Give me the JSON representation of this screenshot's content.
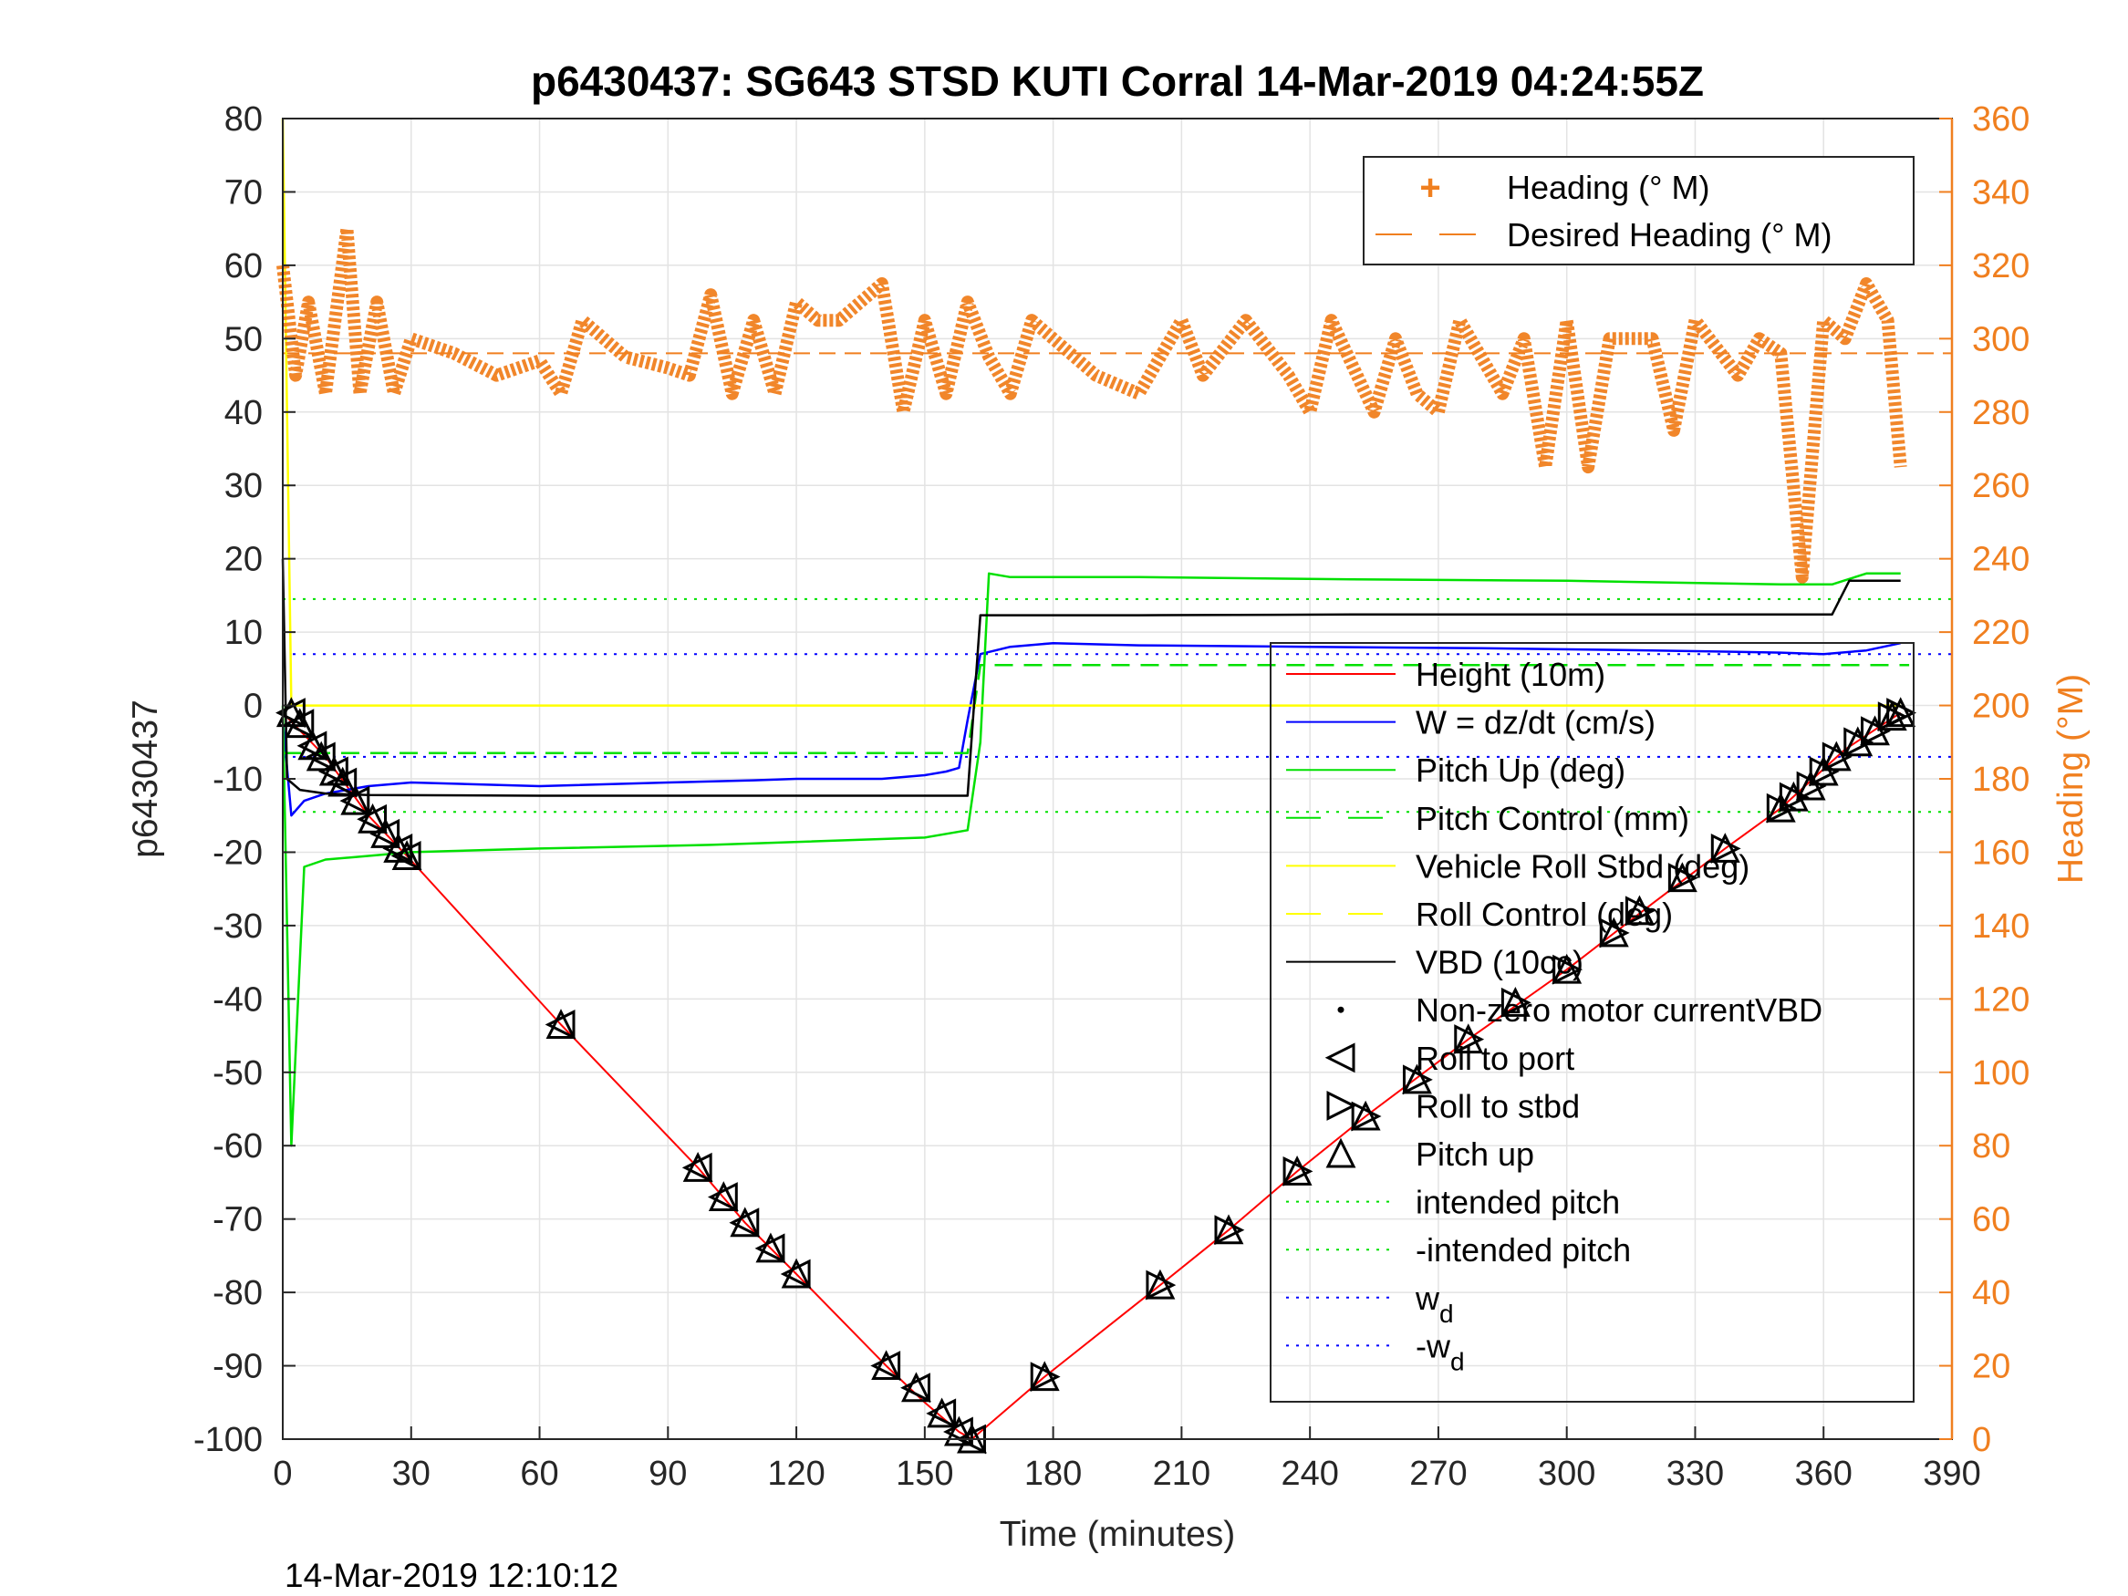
{
  "chart_data": {
    "type": "line",
    "title": "p6430437: SG643 STSD KUTI Corral 14-Mar-2019 04:24:55Z",
    "xlabel": "Time (minutes)",
    "ylabel": "p6430437",
    "y2label": "Heading (°M)",
    "footer": "14-Mar-2019 12:10:12",
    "xlim": [
      0,
      390
    ],
    "ylim": [
      -100,
      80
    ],
    "y2lim": [
      0,
      360
    ],
    "grid": true,
    "xticks": [
      0,
      30,
      60,
      90,
      120,
      150,
      180,
      210,
      240,
      270,
      300,
      330,
      360,
      390
    ],
    "yticks": [
      80,
      70,
      60,
      50,
      40,
      30,
      20,
      10,
      0,
      -10,
      -20,
      -30,
      -40,
      -50,
      -60,
      -70,
      -80,
      -90,
      -100
    ],
    "y2ticks": [
      360,
      340,
      320,
      300,
      280,
      260,
      240,
      220,
      200,
      180,
      160,
      140,
      120,
      100,
      80,
      60,
      40,
      20,
      0
    ],
    "legend_top": {
      "placement": "top-right",
      "entries": [
        {
          "label": "Heading (° M)",
          "color": "#f07f1f",
          "marker": "plus"
        },
        {
          "label": "Desired Heading (° M)",
          "color": "#f07f1f",
          "style": "dashed"
        }
      ]
    },
    "legend_main": {
      "placement": "right",
      "entries": [
        {
          "label": "Height (10m)",
          "color": "#ff0000",
          "style": "solid"
        },
        {
          "label": "W = dz/dt (cm/s)",
          "color": "#0000ff",
          "style": "solid"
        },
        {
          "label": "Pitch Up (deg)",
          "color": "#00e000",
          "style": "solid"
        },
        {
          "label": "Pitch Control (mm)",
          "color": "#00e000",
          "style": "dashed"
        },
        {
          "label": "Vehicle Roll Stbd (deg)",
          "color": "#ffff00",
          "style": "solid"
        },
        {
          "label": "Roll Control (deg)",
          "color": "#ffff00",
          "style": "dashed"
        },
        {
          "label": "VBD (10cc)",
          "color": "#000000",
          "style": "solid"
        },
        {
          "label": "Non-zero motor currentVBD",
          "color": "#000000",
          "marker": "dot"
        },
        {
          "label": "Roll to port",
          "color": "#000000",
          "marker": "triangle-left"
        },
        {
          "label": "Roll to stbd",
          "color": "#000000",
          "marker": "triangle-right"
        },
        {
          "label": "Pitch up",
          "color": "#000000",
          "marker": "triangle-up"
        },
        {
          "label": "intended pitch",
          "color": "#00e000",
          "style": "dotted"
        },
        {
          "label": "-intended pitch",
          "color": "#00e000",
          "style": "dotted"
        },
        {
          "label": "w",
          "sub": "d",
          "color": "#0000ff",
          "style": "dotted"
        },
        {
          "label": "-w",
          "sub": "d",
          "color": "#0000ff",
          "style": "dotted"
        }
      ]
    },
    "reference_lines": [
      {
        "name": "intended pitch",
        "y": 14.5,
        "color": "#00e000"
      },
      {
        "name": "-intended pitch",
        "y": -14.5,
        "color": "#00e000"
      },
      {
        "name": "w_d",
        "y": 7,
        "color": "#0000ff"
      },
      {
        "name": "-w_d",
        "y": -7,
        "color": "#0000ff"
      },
      {
        "name": "Desired Heading",
        "y2": 296,
        "color": "#f07f1f"
      }
    ],
    "series": [
      {
        "name": "Height (10m)",
        "color": "#ff0000",
        "x": [
          0,
          10,
          20,
          29,
          65,
          97,
          108,
          120,
          141,
          150,
          158,
          161,
          178,
          205,
          221,
          237,
          253,
          277,
          300,
          320,
          337,
          350,
          365,
          378
        ],
        "y": [
          -1,
          -7,
          -15,
          -20.5,
          -43.5,
          -63,
          -70.5,
          -77.5,
          -90,
          -95,
          -99,
          -100,
          -91.5,
          -79,
          -71.5,
          -63.5,
          -56,
          -45.5,
          -36,
          -27,
          -19.5,
          -14,
          -6,
          -1
        ]
      },
      {
        "name": "W = dz/dt (cm/s)",
        "color": "#0000ff",
        "x": [
          0,
          2,
          5,
          10,
          20,
          30,
          60,
          90,
          110,
          120,
          140,
          150,
          155,
          158,
          160,
          163,
          170,
          180,
          200,
          240,
          280,
          320,
          350,
          360,
          370,
          378
        ],
        "y": [
          -2,
          -15,
          -13,
          -12,
          -11,
          -10.5,
          -11,
          -10.5,
          -10.2,
          -10,
          -10,
          -9.5,
          -9,
          -8.5,
          -2,
          7,
          8,
          8.5,
          8.2,
          8,
          7.8,
          7.5,
          7.2,
          7,
          7.5,
          8.5
        ]
      },
      {
        "name": "Pitch Up (deg)",
        "color": "#00e000",
        "x": [
          0,
          2,
          5,
          10,
          20,
          30,
          60,
          100,
          150,
          160,
          163,
          165,
          170,
          200,
          250,
          300,
          350,
          362,
          370,
          378
        ],
        "y": [
          0,
          -60,
          -22,
          -21,
          -20.5,
          -20,
          -19.5,
          -19,
          -18,
          -17,
          -5,
          18,
          17.5,
          17.5,
          17.2,
          17,
          16.5,
          16.5,
          18,
          18
        ]
      },
      {
        "name": "Pitch Control (mm)",
        "color": "#00e000",
        "style": "dashed",
        "x": [
          0,
          160,
          163,
          380
        ],
        "y": [
          -6.5,
          -6.5,
          5.5,
          5.5
        ]
      },
      {
        "name": "Vehicle Roll Stbd (deg)",
        "color": "#ffff00",
        "x": [
          0,
          2,
          30,
          60,
          100,
          160,
          200,
          250,
          300,
          345,
          378
        ],
        "y": [
          80,
          0,
          0,
          0,
          0,
          0,
          0,
          0,
          0,
          0,
          0
        ]
      },
      {
        "name": "VBD (10cc)",
        "color": "#000000",
        "x": [
          0,
          1,
          4,
          10,
          20,
          60,
          100,
          160,
          163,
          200,
          250,
          300,
          362,
          366,
          378
        ],
        "y": [
          20,
          -10,
          -11.5,
          -12,
          -12.2,
          -12.3,
          -12.3,
          -12.3,
          12.3,
          12.3,
          12.4,
          12.4,
          12.4,
          17,
          17
        ]
      },
      {
        "name": "Heading (° M)",
        "color": "#f07f1f",
        "axis": "y2",
        "x": [
          0,
          3,
          6,
          10,
          15,
          18,
          22,
          26,
          30,
          40,
          50,
          60,
          65,
          70,
          80,
          90,
          95,
          100,
          105,
          110,
          115,
          120,
          125,
          130,
          140,
          145,
          150,
          155,
          160,
          165,
          170,
          175,
          180,
          190,
          200,
          210,
          215,
          225,
          235,
          240,
          245,
          255,
          260,
          265,
          270,
          275,
          285,
          290,
          295,
          300,
          305,
          310,
          320,
          325,
          330,
          340,
          345,
          350,
          355,
          360,
          365,
          370,
          375,
          378
        ],
        "y": [
          320,
          290,
          310,
          285,
          330,
          285,
          310,
          285,
          300,
          296,
          290,
          294,
          285,
          305,
          295,
          292,
          290,
          312,
          285,
          305,
          285,
          310,
          305,
          305,
          315,
          280,
          305,
          285,
          310,
          295,
          285,
          305,
          300,
          290,
          285,
          305,
          290,
          305,
          290,
          280,
          305,
          280,
          300,
          285,
          280,
          305,
          285,
          300,
          265,
          305,
          265,
          300,
          300,
          275,
          305,
          290,
          300,
          296,
          235,
          305,
          300,
          315,
          305,
          265
        ]
      }
    ],
    "markers": [
      {
        "type": "triangle-left",
        "x": [
          2,
          4,
          7,
          9,
          12,
          14,
          17,
          21,
          24,
          27,
          29,
          65,
          97,
          103,
          108,
          114,
          120,
          141,
          148,
          154,
          158,
          161
        ],
        "y": [
          -1,
          -2.5,
          -5.5,
          -7,
          -9,
          -10.5,
          -13,
          -15.5,
          -17.5,
          -19.5,
          -20.5,
          -43.5,
          -63,
          -67,
          -70.5,
          -74,
          -77.5,
          -90,
          -93,
          -96.5,
          -99,
          -100
        ]
      },
      {
        "type": "triangle-right",
        "x": [
          178,
          205,
          221,
          237,
          253,
          265,
          277,
          288,
          300,
          311,
          317,
          327,
          337,
          350,
          353,
          357,
          360,
          363,
          368,
          372,
          376,
          378
        ],
        "y": [
          -91.5,
          -79,
          -71.5,
          -63.5,
          -56,
          -51,
          -45.5,
          -40.5,
          -36,
          -31,
          -28,
          -23.5,
          -19.5,
          -14,
          -12.5,
          -11,
          -9,
          -7,
          -5,
          -3.5,
          -1.5,
          -1
        ]
      }
    ]
  }
}
